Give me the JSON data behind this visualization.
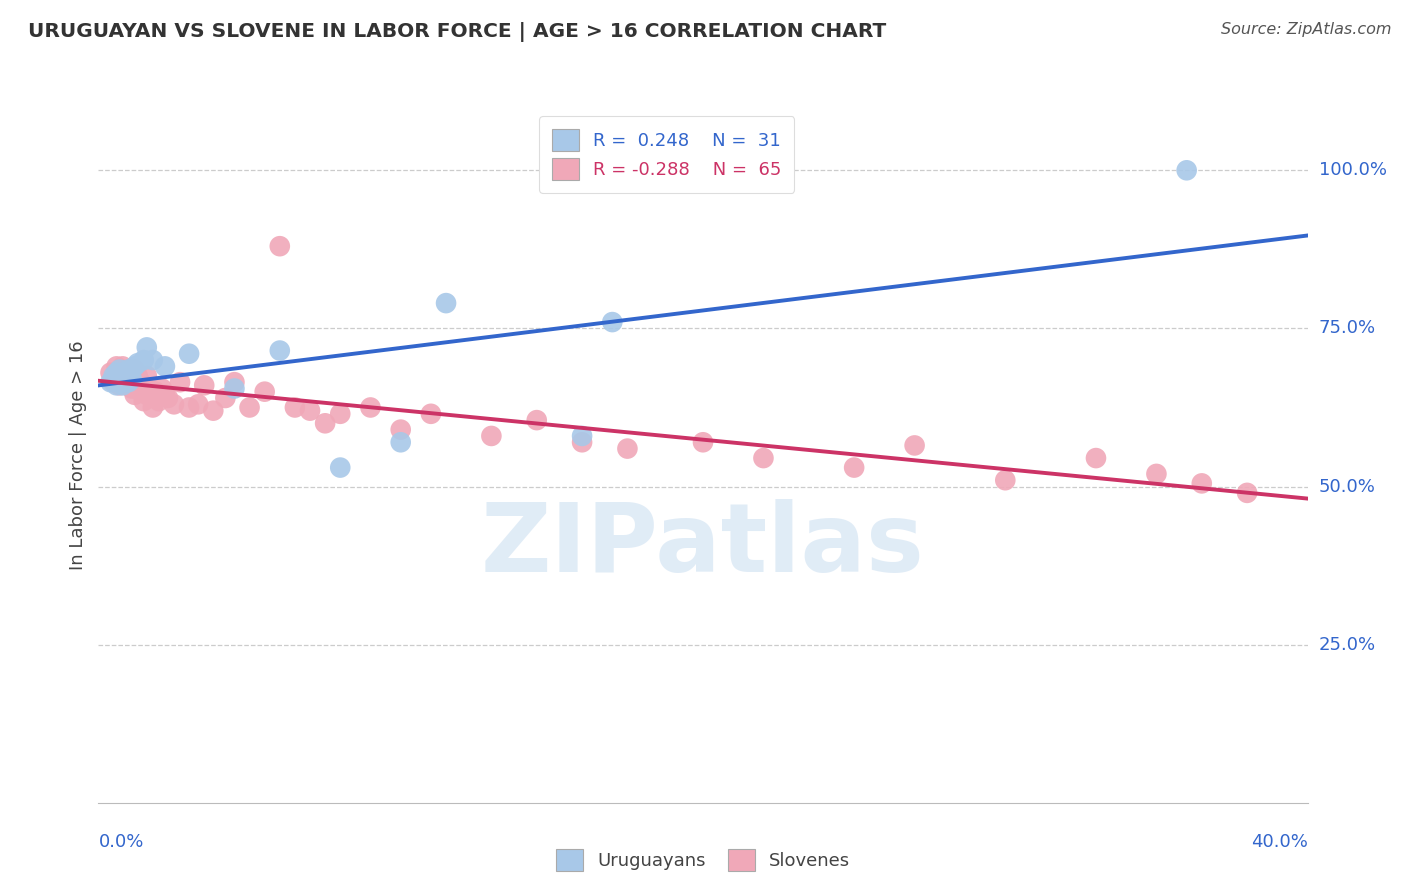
{
  "title": "URUGUAYAN VS SLOVENE IN LABOR FORCE | AGE > 16 CORRELATION CHART",
  "source": "Source: ZipAtlas.com",
  "ylabel": "In Labor Force | Age > 16",
  "ytick_labels": [
    "100.0%",
    "75.0%",
    "50.0%",
    "25.0%"
  ],
  "ytick_values": [
    1.0,
    0.75,
    0.5,
    0.25
  ],
  "xlim": [
    0.0,
    0.4
  ],
  "ylim": [
    0.0,
    1.1
  ],
  "uruguayan_color": "#a8c8e8",
  "slovene_color": "#f0a8b8",
  "uruguayan_line_color": "#3366cc",
  "slovene_line_color": "#cc3366",
  "legend_R_uruguayan": "R =  0.248",
  "legend_N_uruguayan": "N =  31",
  "legend_R_slovene": "R = -0.288",
  "legend_N_slovene": "N =  65",
  "watermark": "ZIPatlas",
  "background_color": "#ffffff",
  "grid_color": "#cccccc",
  "uruguayan_x": [
    0.004,
    0.005,
    0.005,
    0.006,
    0.006,
    0.007,
    0.007,
    0.007,
    0.008,
    0.008,
    0.009,
    0.009,
    0.01,
    0.01,
    0.01,
    0.011,
    0.012,
    0.013,
    0.015,
    0.016,
    0.018,
    0.022,
    0.03,
    0.045,
    0.06,
    0.08,
    0.1,
    0.115,
    0.16,
    0.17,
    0.36
  ],
  "uruguayan_y": [
    0.665,
    0.67,
    0.675,
    0.66,
    0.68,
    0.665,
    0.675,
    0.685,
    0.66,
    0.67,
    0.665,
    0.68,
    0.665,
    0.675,
    0.685,
    0.67,
    0.69,
    0.695,
    0.7,
    0.72,
    0.7,
    0.69,
    0.71,
    0.655,
    0.715,
    0.53,
    0.57,
    0.79,
    0.58,
    0.76,
    1.0
  ],
  "slovene_x": [
    0.004,
    0.005,
    0.006,
    0.006,
    0.007,
    0.007,
    0.008,
    0.008,
    0.009,
    0.009,
    0.01,
    0.01,
    0.01,
    0.011,
    0.011,
    0.012,
    0.012,
    0.012,
    0.013,
    0.013,
    0.014,
    0.014,
    0.015,
    0.015,
    0.016,
    0.016,
    0.017,
    0.018,
    0.018,
    0.019,
    0.02,
    0.021,
    0.022,
    0.023,
    0.025,
    0.027,
    0.03,
    0.033,
    0.035,
    0.038,
    0.042,
    0.045,
    0.05,
    0.055,
    0.06,
    0.065,
    0.07,
    0.075,
    0.08,
    0.09,
    0.1,
    0.11,
    0.13,
    0.145,
    0.16,
    0.175,
    0.2,
    0.22,
    0.25,
    0.27,
    0.3,
    0.33,
    0.35,
    0.365,
    0.38
  ],
  "slovene_y": [
    0.68,
    0.665,
    0.68,
    0.69,
    0.67,
    0.66,
    0.67,
    0.69,
    0.67,
    0.68,
    0.66,
    0.665,
    0.685,
    0.655,
    0.67,
    0.645,
    0.66,
    0.685,
    0.66,
    0.675,
    0.65,
    0.665,
    0.635,
    0.66,
    0.645,
    0.675,
    0.65,
    0.625,
    0.645,
    0.65,
    0.635,
    0.655,
    0.645,
    0.64,
    0.63,
    0.665,
    0.625,
    0.63,
    0.66,
    0.62,
    0.64,
    0.665,
    0.625,
    0.65,
    0.88,
    0.625,
    0.62,
    0.6,
    0.615,
    0.625,
    0.59,
    0.615,
    0.58,
    0.605,
    0.57,
    0.56,
    0.57,
    0.545,
    0.53,
    0.565,
    0.51,
    0.545,
    0.52,
    0.505,
    0.49
  ]
}
